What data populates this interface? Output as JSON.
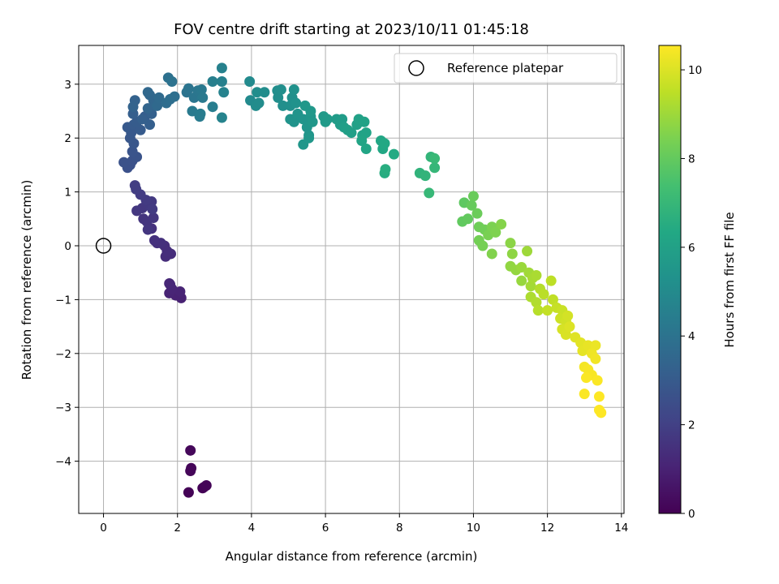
{
  "chart_data": {
    "type": "scatter",
    "title": "FOV centre drift starting at 2023/10/11 01:45:18",
    "xlabel": "Angular distance from reference (arcmin)",
    "ylabel": "Rotation from reference (arcmin)",
    "xlim": [
      -0.67,
      14.07
    ],
    "ylim": [
      -4.97,
      3.72
    ],
    "xticks": [
      0,
      2,
      4,
      6,
      8,
      10,
      12,
      14
    ],
    "yticks": [
      -4,
      -3,
      -2,
      -1,
      0,
      1,
      2,
      3
    ],
    "grid": true,
    "legend": {
      "placement": "top-right",
      "entries": [
        "Reference platepar"
      ]
    },
    "reference_point": {
      "x": 0,
      "y": 0
    },
    "colorbar": {
      "label": "Hours from first FF file",
      "colormap": "viridis",
      "min": 0,
      "max": 10.55,
      "ticks": [
        0,
        2,
        4,
        6,
        8,
        10
      ]
    },
    "series": [
      {
        "points": [
          [
            2.3,
            -4.58,
            0.05
          ],
          [
            2.68,
            -4.5,
            0.05
          ],
          [
            2.72,
            -4.48,
            0.05
          ],
          [
            2.78,
            -4.45,
            0.1
          ],
          [
            2.37,
            -4.13,
            0.12
          ],
          [
            2.35,
            -4.18,
            0.15
          ],
          [
            2.35,
            -3.8,
            0.2
          ],
          [
            2.1,
            -0.97,
            1.0
          ],
          [
            1.95,
            -0.92,
            1.0
          ],
          [
            2.07,
            -0.85,
            1.05
          ],
          [
            1.78,
            -0.88,
            1.05
          ],
          [
            1.85,
            -0.8,
            1.1
          ],
          [
            1.8,
            -0.72,
            1.15
          ],
          [
            1.78,
            -0.7,
            1.15
          ],
          [
            1.82,
            -0.15,
            1.35
          ],
          [
            1.68,
            -0.2,
            1.35
          ],
          [
            1.72,
            -0.1,
            1.4
          ],
          [
            1.65,
            0.0,
            1.4
          ],
          [
            1.55,
            0.05,
            1.45
          ],
          [
            1.45,
            0.05,
            1.45
          ],
          [
            1.38,
            0.1,
            1.5
          ],
          [
            1.3,
            0.32,
            1.5
          ],
          [
            1.08,
            0.5,
            1.6
          ],
          [
            1.17,
            0.45,
            1.6
          ],
          [
            1.35,
            0.52,
            1.65
          ],
          [
            1.2,
            0.3,
            1.65
          ],
          [
            0.9,
            0.65,
            1.7
          ],
          [
            1.05,
            0.7,
            1.7
          ],
          [
            1.22,
            0.75,
            1.75
          ],
          [
            1.3,
            0.82,
            1.75
          ],
          [
            1.32,
            0.68,
            1.8
          ],
          [
            1.15,
            0.85,
            1.8
          ],
          [
            1.0,
            0.95,
            1.85
          ],
          [
            0.88,
            1.05,
            1.9
          ],
          [
            0.85,
            1.12,
            1.9
          ],
          [
            0.65,
            1.45,
            2.6
          ],
          [
            0.72,
            1.5,
            2.6
          ],
          [
            0.55,
            1.55,
            2.65
          ],
          [
            0.78,
            1.58,
            2.65
          ],
          [
            0.9,
            1.65,
            2.7
          ],
          [
            0.78,
            1.75,
            2.75
          ],
          [
            0.82,
            1.9,
            2.8
          ],
          [
            0.72,
            2.0,
            2.85
          ],
          [
            0.75,
            2.1,
            2.9
          ],
          [
            0.65,
            2.2,
            2.95
          ],
          [
            0.82,
            2.25,
            3.0
          ],
          [
            1.0,
            2.15,
            3.0
          ],
          [
            0.9,
            2.3,
            3.05
          ],
          [
            1.12,
            2.4,
            3.1
          ],
          [
            0.8,
            2.45,
            3.15
          ],
          [
            1.25,
            2.25,
            3.15
          ],
          [
            1.05,
            2.35,
            3.2
          ],
          [
            1.3,
            2.45,
            3.25
          ],
          [
            0.85,
            2.7,
            3.3
          ],
          [
            0.8,
            2.58,
            3.35
          ],
          [
            1.2,
            2.55,
            3.4
          ],
          [
            1.35,
            2.7,
            3.45
          ],
          [
            1.25,
            2.8,
            3.5
          ],
          [
            1.2,
            2.85,
            3.55
          ],
          [
            1.45,
            2.6,
            3.6
          ],
          [
            1.5,
            2.75,
            3.65
          ],
          [
            1.7,
            2.65,
            3.75
          ],
          [
            1.8,
            2.72,
            3.8
          ],
          [
            1.92,
            2.77,
            3.85
          ],
          [
            1.75,
            3.12,
            3.9
          ],
          [
            1.85,
            3.05,
            3.95
          ],
          [
            2.25,
            2.85,
            4.0
          ],
          [
            2.3,
            2.92,
            4.05
          ],
          [
            2.45,
            2.75,
            4.1
          ],
          [
            2.55,
            2.88,
            4.15
          ],
          [
            2.65,
            2.9,
            4.2
          ],
          [
            2.68,
            2.75,
            4.25
          ],
          [
            2.4,
            2.5,
            4.3
          ],
          [
            2.6,
            2.4,
            4.35
          ],
          [
            2.62,
            2.45,
            4.4
          ],
          [
            2.95,
            2.58,
            4.45
          ],
          [
            2.95,
            3.05,
            4.5
          ],
          [
            3.2,
            3.05,
            4.55
          ],
          [
            3.2,
            3.3,
            4.6
          ],
          [
            3.25,
            2.85,
            4.65
          ],
          [
            3.2,
            2.38,
            4.7
          ],
          [
            3.95,
            3.05,
            5.0
          ],
          [
            3.97,
            2.7,
            5.0
          ],
          [
            4.12,
            2.6,
            5.05
          ],
          [
            4.2,
            2.65,
            5.05
          ],
          [
            4.15,
            2.85,
            5.1
          ],
          [
            4.35,
            2.85,
            5.1
          ],
          [
            4.7,
            2.88,
            5.15
          ],
          [
            4.72,
            2.75,
            5.15
          ],
          [
            4.8,
            2.9,
            5.2
          ],
          [
            4.85,
            2.6,
            5.2
          ],
          [
            5.05,
            2.6,
            5.25
          ],
          [
            5.1,
            2.75,
            5.25
          ],
          [
            5.15,
            2.9,
            5.3
          ],
          [
            5.2,
            2.65,
            5.3
          ],
          [
            5.05,
            2.35,
            5.35
          ],
          [
            5.15,
            2.3,
            5.35
          ],
          [
            5.25,
            2.45,
            5.4
          ],
          [
            5.4,
            2.35,
            5.4
          ],
          [
            5.5,
            2.2,
            5.45
          ],
          [
            5.55,
            2.05,
            5.45
          ],
          [
            5.4,
            1.88,
            5.5
          ],
          [
            5.6,
            2.4,
            5.5
          ],
          [
            5.65,
            2.3,
            5.55
          ],
          [
            5.55,
            2.0,
            5.55
          ],
          [
            5.6,
            2.5,
            5.6
          ],
          [
            5.45,
            2.6,
            5.6
          ],
          [
            5.95,
            2.4,
            5.65
          ],
          [
            6.0,
            2.3,
            5.7
          ],
          [
            6.05,
            2.35,
            5.7
          ],
          [
            6.3,
            2.35,
            5.75
          ],
          [
            6.4,
            2.25,
            5.8
          ],
          [
            6.45,
            2.35,
            5.8
          ],
          [
            6.5,
            2.2,
            5.85
          ],
          [
            6.6,
            2.15,
            5.9
          ],
          [
            6.7,
            2.1,
            5.9
          ],
          [
            6.85,
            2.25,
            5.95
          ],
          [
            6.9,
            2.35,
            6.0
          ],
          [
            7.0,
            2.05,
            6.0
          ],
          [
            7.05,
            2.3,
            6.05
          ],
          [
            7.1,
            2.1,
            6.1
          ],
          [
            6.98,
            1.95,
            6.15
          ],
          [
            7.1,
            1.8,
            6.2
          ],
          [
            7.5,
            1.95,
            6.25
          ],
          [
            7.55,
            1.8,
            6.3
          ],
          [
            7.6,
            1.9,
            6.35
          ],
          [
            7.85,
            1.7,
            6.4
          ],
          [
            7.6,
            1.35,
            6.5
          ],
          [
            7.62,
            1.42,
            6.55
          ],
          [
            8.55,
            1.35,
            6.8
          ],
          [
            8.7,
            1.3,
            6.85
          ],
          [
            8.85,
            1.65,
            6.9
          ],
          [
            8.95,
            1.45,
            6.95
          ],
          [
            8.8,
            0.98,
            7.0
          ],
          [
            8.95,
            1.62,
            7.05
          ],
          [
            9.75,
            0.8,
            7.9
          ],
          [
            9.7,
            0.45,
            7.95
          ],
          [
            9.85,
            0.5,
            8.0
          ],
          [
            9.95,
            0.75,
            8.05
          ],
          [
            10.0,
            0.92,
            8.1
          ],
          [
            10.1,
            0.6,
            8.15
          ],
          [
            10.15,
            0.35,
            8.2
          ],
          [
            10.3,
            0.3,
            8.25
          ],
          [
            10.15,
            0.1,
            8.3
          ],
          [
            10.25,
            0.0,
            8.35
          ],
          [
            10.4,
            0.2,
            8.4
          ],
          [
            10.5,
            0.35,
            8.45
          ],
          [
            10.6,
            0.25,
            8.5
          ],
          [
            10.5,
            -0.15,
            8.55
          ],
          [
            10.75,
            0.4,
            8.6
          ],
          [
            11.0,
            0.05,
            8.7
          ],
          [
            11.05,
            -0.15,
            8.75
          ],
          [
            11.0,
            -0.38,
            8.8
          ],
          [
            11.15,
            -0.45,
            8.85
          ],
          [
            11.3,
            -0.65,
            8.9
          ],
          [
            11.3,
            -0.4,
            8.95
          ],
          [
            11.45,
            -0.1,
            9.0
          ],
          [
            11.5,
            -0.5,
            9.05
          ],
          [
            11.55,
            -0.75,
            9.1
          ],
          [
            11.6,
            -0.6,
            9.15
          ],
          [
            11.7,
            -0.55,
            9.2
          ],
          [
            11.55,
            -0.95,
            9.25
          ],
          [
            11.7,
            -1.05,
            9.3
          ],
          [
            11.8,
            -0.8,
            9.35
          ],
          [
            11.75,
            -1.2,
            9.4
          ],
          [
            11.9,
            -0.9,
            9.45
          ],
          [
            12.1,
            -0.65,
            9.5
          ],
          [
            12.15,
            -1.0,
            9.55
          ],
          [
            12.0,
            -1.2,
            9.6
          ],
          [
            12.25,
            -1.15,
            9.65
          ],
          [
            12.4,
            -1.2,
            9.7
          ],
          [
            12.35,
            -1.35,
            9.75
          ],
          [
            12.5,
            -1.4,
            9.8
          ],
          [
            12.55,
            -1.3,
            9.85
          ],
          [
            12.4,
            -1.55,
            9.9
          ],
          [
            12.5,
            -1.65,
            9.95
          ],
          [
            12.6,
            -1.5,
            10.0
          ],
          [
            12.75,
            -1.7,
            10.05
          ],
          [
            12.9,
            -1.8,
            10.1
          ],
          [
            12.95,
            -1.95,
            10.15
          ],
          [
            13.1,
            -1.85,
            10.2
          ],
          [
            13.3,
            -1.85,
            10.25
          ],
          [
            13.2,
            -2.0,
            10.3
          ],
          [
            13.3,
            -2.1,
            10.35
          ],
          [
            13.0,
            -2.25,
            10.4
          ],
          [
            13.1,
            -2.3,
            10.45
          ],
          [
            13.2,
            -2.4,
            10.45
          ],
          [
            13.35,
            -2.5,
            10.5
          ],
          [
            13.05,
            -2.45,
            10.5
          ],
          [
            13.0,
            -2.75,
            10.5
          ],
          [
            13.4,
            -2.8,
            10.55
          ],
          [
            13.4,
            -3.05,
            10.55
          ],
          [
            13.45,
            -3.1,
            10.55
          ]
        ]
      }
    ]
  }
}
